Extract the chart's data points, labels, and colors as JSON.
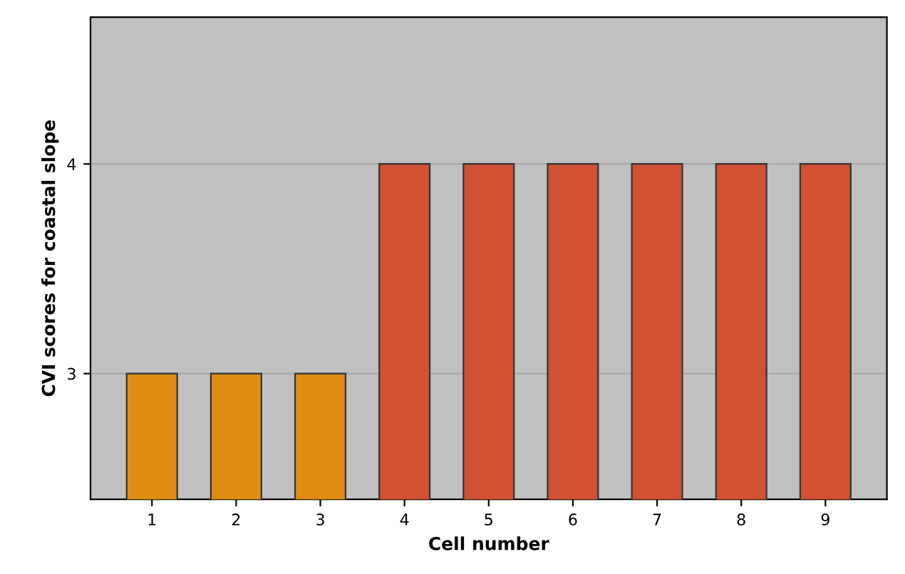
{
  "chart_data": {
    "type": "bar",
    "xlabel": "Cell number",
    "ylabel": "CVI scores for coastal slope",
    "categories": [
      "1",
      "2",
      "3",
      "4",
      "5",
      "6",
      "7",
      "8",
      "9"
    ],
    "values": [
      3,
      3,
      3,
      4,
      4,
      4,
      4,
      4,
      4
    ],
    "colors": [
      "#e08c12",
      "#e08c12",
      "#e08c12",
      "#d05232",
      "#d05232",
      "#d05232",
      "#d05232",
      "#d05232",
      "#d05232"
    ],
    "ylim": [
      2.4,
      4.7
    ],
    "yticks": [
      3,
      4
    ],
    "grid": "y"
  }
}
